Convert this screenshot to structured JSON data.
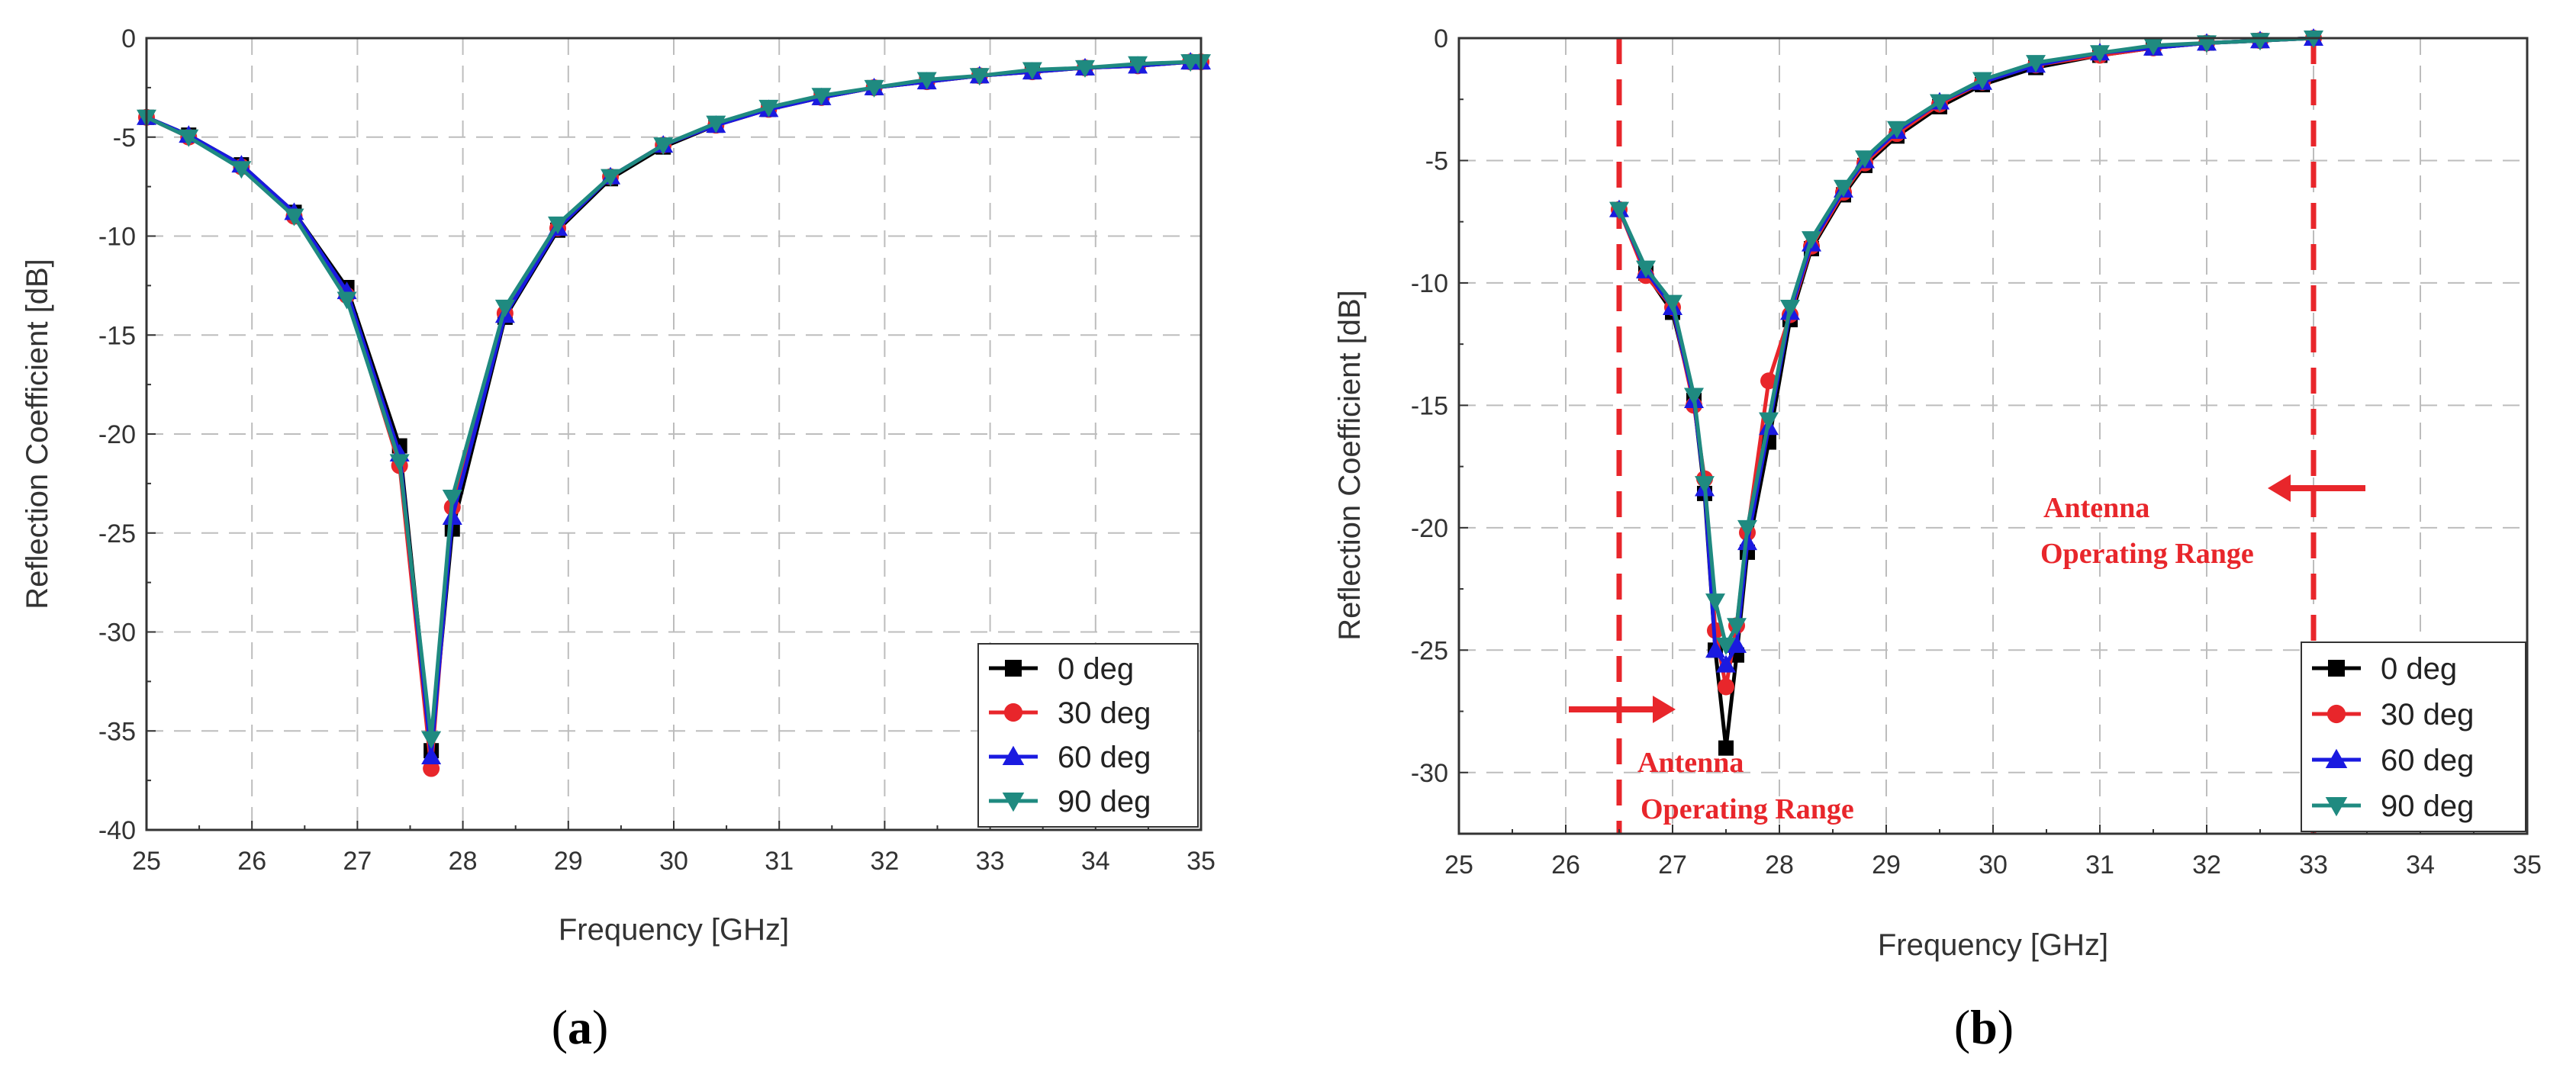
{
  "chart_data": [
    {
      "type": "line",
      "panel_label": "(a)",
      "panel_letter": "a",
      "title": "",
      "xlabel": "Frequency [GHz]",
      "ylabel": "Reflection Coefficient [dB]",
      "xlim": [
        25,
        35
      ],
      "ylim": [
        -40,
        0
      ],
      "xticks": [
        25,
        26,
        27,
        28,
        29,
        30,
        31,
        32,
        33,
        34,
        35
      ],
      "yticks": [
        0,
        -5,
        -10,
        -15,
        -20,
        -25,
        -30,
        -35,
        -40
      ],
      "grid": true,
      "legend_position": "bottom-right",
      "series": [
        {
          "name": "0 deg",
          "color": "#000000",
          "marker": "square",
          "x": [
            25,
            25.4,
            25.9,
            26.4,
            26.9,
            27.4,
            27.7,
            27.9,
            28.4,
            28.9,
            29.4,
            29.9,
            30.4,
            30.9,
            31.4,
            31.9,
            32.4,
            32.9,
            33.4,
            33.9,
            34.4,
            34.9,
            35
          ],
          "y": [
            -4,
            -4.9,
            -6.4,
            -8.8,
            -12.6,
            -20.6,
            -36.0,
            -24.8,
            -14.1,
            -9.7,
            -7.1,
            -5.5,
            -4.4,
            -3.6,
            -3.0,
            -2.5,
            -2.2,
            -1.9,
            -1.7,
            -1.5,
            -1.4,
            -1.2,
            -1.2
          ]
        },
        {
          "name": "30 deg",
          "color": "#e8262b",
          "marker": "circle",
          "x": [
            25,
            25.4,
            25.9,
            26.4,
            26.9,
            27.4,
            27.7,
            27.9,
            28.4,
            28.9,
            29.4,
            29.9,
            30.4,
            30.9,
            31.4,
            31.9,
            32.4,
            32.9,
            33.4,
            33.9,
            34.4,
            34.9,
            35
          ],
          "y": [
            -4,
            -5.0,
            -6.5,
            -9.0,
            -13.0,
            -21.6,
            -36.9,
            -23.7,
            -13.9,
            -9.6,
            -7.0,
            -5.4,
            -4.4,
            -3.6,
            -3.0,
            -2.5,
            -2.2,
            -1.9,
            -1.7,
            -1.5,
            -1.4,
            -1.2,
            -1.2
          ]
        },
        {
          "name": "60 deg",
          "color": "#1a1ae0",
          "marker": "triangle-up",
          "x": [
            25,
            25.4,
            25.9,
            26.4,
            26.9,
            27.4,
            27.7,
            27.9,
            28.4,
            28.9,
            29.4,
            29.9,
            30.4,
            30.9,
            31.4,
            31.9,
            32.4,
            32.9,
            33.4,
            33.9,
            34.4,
            34.9,
            35
          ],
          "y": [
            -4,
            -4.9,
            -6.4,
            -8.8,
            -12.8,
            -21.0,
            -36.3,
            -24.2,
            -14.0,
            -9.6,
            -7.0,
            -5.4,
            -4.4,
            -3.6,
            -3.0,
            -2.5,
            -2.2,
            -1.9,
            -1.7,
            -1.5,
            -1.4,
            -1.2,
            -1.2
          ]
        },
        {
          "name": "90 deg",
          "color": "#1f8a80",
          "marker": "triangle-down",
          "x": [
            25,
            25.4,
            25.9,
            26.4,
            26.9,
            27.4,
            27.7,
            27.9,
            28.4,
            28.9,
            29.4,
            29.9,
            30.4,
            30.9,
            31.4,
            31.9,
            32.4,
            32.9,
            33.4,
            33.9,
            34.4,
            34.9,
            35
          ],
          "y": [
            -4,
            -5.0,
            -6.6,
            -9.0,
            -13.2,
            -21.4,
            -35.4,
            -23.2,
            -13.6,
            -9.4,
            -7.0,
            -5.4,
            -4.3,
            -3.5,
            -2.9,
            -2.5,
            -2.1,
            -1.9,
            -1.6,
            -1.5,
            -1.3,
            -1.2,
            -1.2
          ]
        }
      ]
    },
    {
      "type": "line",
      "panel_label": "(b)",
      "panel_letter": "b",
      "title": "",
      "xlabel": "Frequency [GHz]",
      "ylabel": "Reflection Coefficient [dB]",
      "xlim": [
        25,
        35
      ],
      "ylim": [
        -32.5,
        0
      ],
      "xticks": [
        25,
        26,
        27,
        28,
        29,
        30,
        31,
        32,
        33,
        34,
        35
      ],
      "yticks": [
        0,
        -5,
        -10,
        -15,
        -20,
        -25,
        -30
      ],
      "grid": true,
      "legend_position": "bottom-right",
      "operating_range_markers": [
        26.5,
        33
      ],
      "annotations": [
        {
          "line1": "Antenna",
          "line2": "Operating Range",
          "side": "left"
        },
        {
          "line1": "Antenna",
          "line2": "Operating Range",
          "side": "right"
        }
      ],
      "series": [
        {
          "name": "0 deg",
          "color": "#000000",
          "marker": "square",
          "x": [
            26.5,
            26.75,
            27.0,
            27.2,
            27.3,
            27.4,
            27.5,
            27.6,
            27.7,
            27.9,
            28.1,
            28.3,
            28.6,
            28.8,
            29.1,
            29.5,
            29.9,
            30.4,
            31.0,
            31.5,
            32.0,
            32.5,
            33.0
          ],
          "y": [
            -7,
            -9.6,
            -11.2,
            -14.8,
            -18.6,
            -25.0,
            -29.0,
            -25.2,
            -21.0,
            -16.5,
            -11.5,
            -8.6,
            -6.4,
            -5.2,
            -4.0,
            -2.8,
            -1.9,
            -1.2,
            -0.7,
            -0.4,
            -0.2,
            -0.1,
            0
          ]
        },
        {
          "name": "30 deg",
          "color": "#e8262b",
          "marker": "circle",
          "x": [
            26.5,
            26.75,
            27.0,
            27.2,
            27.3,
            27.4,
            27.5,
            27.6,
            27.7,
            27.9,
            28.1,
            28.3,
            28.6,
            28.8,
            29.1,
            29.5,
            29.9,
            30.4,
            31.0,
            31.5,
            32.0,
            32.5,
            33.0
          ],
          "y": [
            -7,
            -9.7,
            -11.0,
            -15.0,
            -18.0,
            -24.2,
            -26.5,
            -24.0,
            -20.2,
            -14.0,
            -11.3,
            -8.5,
            -6.3,
            -5.1,
            -3.9,
            -2.7,
            -1.8,
            -1.1,
            -0.7,
            -0.4,
            -0.2,
            -0.1,
            0
          ]
        },
        {
          "name": "60 deg",
          "color": "#1a1ae0",
          "marker": "triangle-up",
          "x": [
            26.5,
            26.75,
            27.0,
            27.2,
            27.3,
            27.4,
            27.5,
            27.6,
            27.7,
            27.9,
            28.1,
            28.3,
            28.6,
            28.8,
            29.1,
            29.5,
            29.9,
            30.4,
            31.0,
            31.5,
            32.0,
            32.5,
            33.0
          ],
          "y": [
            -7,
            -9.5,
            -11.0,
            -14.8,
            -18.4,
            -25.0,
            -25.6,
            -24.8,
            -20.6,
            -15.9,
            -11.2,
            -8.4,
            -6.2,
            -5.0,
            -3.8,
            -2.6,
            -1.8,
            -1.1,
            -0.6,
            -0.4,
            -0.2,
            -0.1,
            0
          ]
        },
        {
          "name": "90 deg",
          "color": "#1f8a80",
          "marker": "triangle-down",
          "x": [
            26.5,
            26.75,
            27.0,
            27.2,
            27.3,
            27.4,
            27.5,
            27.6,
            27.7,
            27.9,
            28.1,
            28.3,
            28.6,
            28.8,
            29.1,
            29.5,
            29.9,
            30.4,
            31.0,
            31.5,
            32.0,
            32.5,
            33.0
          ],
          "y": [
            -7,
            -9.4,
            -10.8,
            -14.6,
            -18.2,
            -23.0,
            -24.8,
            -24.0,
            -20.0,
            -15.6,
            -11.0,
            -8.2,
            -6.1,
            -4.9,
            -3.7,
            -2.6,
            -1.7,
            -1.0,
            -0.6,
            -0.3,
            -0.2,
            -0.1,
            0
          ]
        }
      ]
    }
  ]
}
